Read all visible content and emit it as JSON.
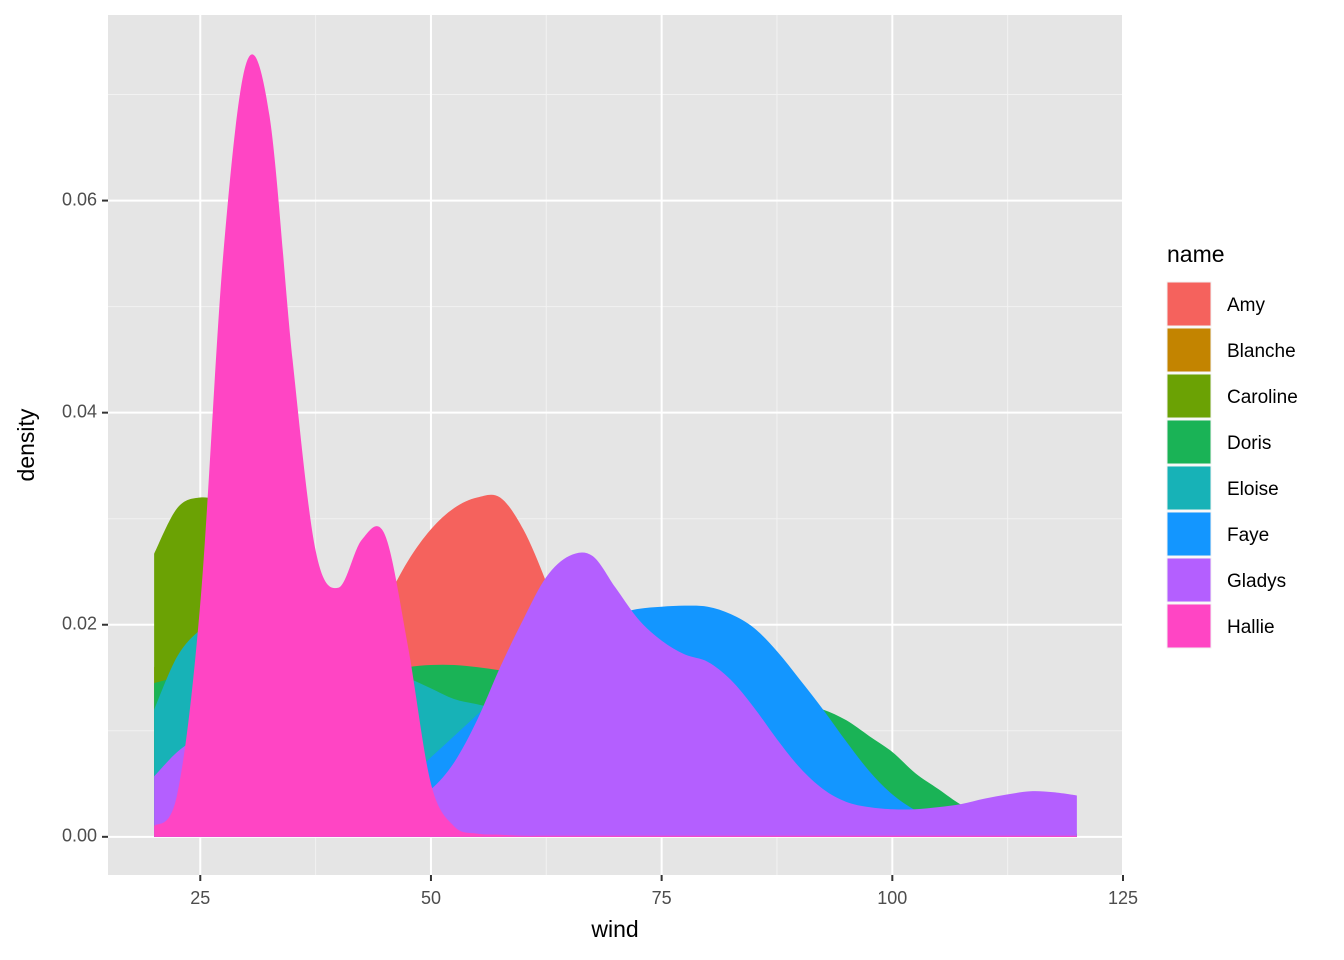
{
  "chart_data": {
    "type": "density",
    "x_label": "wind",
    "y_label": "density",
    "legend_title": "name",
    "xlim": [
      15,
      125
    ],
    "xticks": [
      25,
      50,
      75,
      100,
      125
    ],
    "ylim": [
      -0.0036,
      0.0775
    ],
    "yticks": [
      {
        "value": 0,
        "label": "0.00"
      },
      {
        "value": 0.02,
        "label": "0.02"
      },
      {
        "value": 0.04,
        "label": "0.04"
      },
      {
        "value": 0.06,
        "label": "0.06"
      }
    ],
    "grid": true,
    "legend": "right",
    "x": [
      20,
      22.5,
      25,
      27.5,
      30,
      32.5,
      35,
      37.5,
      40,
      42.5,
      45,
      47.5,
      50,
      52.5,
      55,
      57.5,
      60,
      62.5,
      65,
      67.5,
      70,
      72.5,
      75,
      77.5,
      80,
      82.5,
      85,
      87.5,
      90,
      92.5,
      95,
      97.5,
      100,
      102.5,
      105,
      107.5,
      110,
      112.5,
      115,
      117.5,
      120
    ],
    "series": [
      {
        "name": "Amy",
        "color": "#F5625D",
        "values": [
          0.009,
          0.009,
          0.008,
          0.008,
          0.008,
          0.009,
          0.01,
          0.012,
          0.014,
          0.018,
          0.022,
          0.026,
          0.029,
          0.031,
          0.032,
          0.032,
          0.029,
          0.024,
          0.018,
          0.012,
          0.008,
          0.005,
          0.003,
          0.002,
          0.001,
          0.0005,
          0,
          0,
          0,
          0,
          0,
          0,
          0,
          0,
          0,
          0,
          0,
          0,
          0,
          0,
          0
        ]
      },
      {
        "name": "Blanche",
        "color": "#C38400",
        "values": [
          0.016,
          0.018,
          0.019,
          0.02,
          0.02,
          0.019,
          0.017,
          0.014,
          0.011,
          0.008,
          0.006,
          0.004,
          0.003,
          0.002,
          0.001,
          0.0005,
          0,
          0,
          0,
          0,
          0,
          0,
          0,
          0,
          0,
          0,
          0,
          0,
          0,
          0,
          0,
          0,
          0,
          0,
          0,
          0,
          0,
          0,
          0,
          0,
          0
        ]
      },
      {
        "name": "Caroline",
        "color": "#6BA204",
        "values": [
          0.0267,
          0.031,
          0.032,
          0.0315,
          0.03,
          0.027,
          0.024,
          0.02,
          0.016,
          0.012,
          0.009,
          0.006,
          0.004,
          0.003,
          0.002,
          0.0015,
          0.001,
          0.0005,
          0,
          0,
          0,
          0,
          0,
          0,
          0,
          0,
          0,
          0,
          0,
          0,
          0,
          0,
          0,
          0,
          0,
          0,
          0,
          0,
          0,
          0,
          0
        ]
      },
      {
        "name": "Doris",
        "color": "#1AB356",
        "values": [
          0.0145,
          0.015,
          0.015,
          0.015,
          0.0145,
          0.014,
          0.014,
          0.014,
          0.0145,
          0.015,
          0.0155,
          0.016,
          0.0162,
          0.0162,
          0.016,
          0.0157,
          0.0153,
          0.015,
          0.0147,
          0.0145,
          0.0143,
          0.014,
          0.0138,
          0.0135,
          0.0133,
          0.0132,
          0.013,
          0.0128,
          0.0125,
          0.012,
          0.011,
          0.0095,
          0.008,
          0.006,
          0.0045,
          0.003,
          0.002,
          0.0013,
          0.0008,
          0.0005,
          0.0003
        ]
      },
      {
        "name": "Eloise",
        "color": "#17B2B7",
        "values": [
          0.012,
          0.017,
          0.0195,
          0.0205,
          0.021,
          0.0205,
          0.02,
          0.019,
          0.018,
          0.017,
          0.016,
          0.015,
          0.014,
          0.013,
          0.0125,
          0.012,
          0.0115,
          0.0105,
          0.009,
          0.0075,
          0.006,
          0.005,
          0.004,
          0.003,
          0.002,
          0.0015,
          0.001,
          0.0005,
          0,
          0,
          0,
          0,
          0,
          0,
          0,
          0,
          0,
          0,
          0,
          0,
          0
        ]
      },
      {
        "name": "Faye",
        "color": "#1396FF",
        "values": [
          0.001,
          0.001,
          0.0012,
          0.0013,
          0.0015,
          0.0017,
          0.0018,
          0.002,
          0.0025,
          0.003,
          0.004,
          0.0055,
          0.0075,
          0.0095,
          0.0115,
          0.0135,
          0.016,
          0.018,
          0.0195,
          0.0205,
          0.021,
          0.0215,
          0.0217,
          0.0218,
          0.0217,
          0.021,
          0.0197,
          0.0175,
          0.0148,
          0.012,
          0.009,
          0.0062,
          0.004,
          0.0025,
          0.0015,
          0.001,
          0.0006,
          0.0003,
          0.0002,
          0.0001,
          0.0001
        ]
      },
      {
        "name": "Gladys",
        "color": "#B45FFF",
        "values": [
          0.0057,
          0.008,
          0.0095,
          0.0105,
          0.011,
          0.0105,
          0.009,
          0.0075,
          0.006,
          0.0045,
          0.0035,
          0.0035,
          0.0045,
          0.007,
          0.011,
          0.016,
          0.0205,
          0.0245,
          0.0265,
          0.0265,
          0.0235,
          0.0205,
          0.0185,
          0.0172,
          0.0165,
          0.0148,
          0.0122,
          0.0092,
          0.0065,
          0.0045,
          0.0033,
          0.0028,
          0.0026,
          0.0026,
          0.0028,
          0.0031,
          0.0036,
          0.004,
          0.0043,
          0.0042,
          0.0039
        ]
      },
      {
        "name": "Hallie",
        "color": "#FF45C4",
        "values": [
          0.001,
          0.004,
          0.022,
          0.055,
          0.073,
          0.068,
          0.045,
          0.027,
          0.0235,
          0.028,
          0.0285,
          0.018,
          0.005,
          0.001,
          0.0003,
          0.0002,
          0.0001,
          0.0001,
          0.0001,
          0.0001,
          0.0001,
          0.0001,
          0.0001,
          0.0001,
          0.0001,
          0.0001,
          0.0001,
          0.0001,
          0.0001,
          0.0001,
          0.0001,
          0.0001,
          0.0001,
          0.0001,
          0.0001,
          0.0001,
          0.0001,
          0.0001,
          0.0001,
          0.0001,
          0.0001
        ]
      }
    ]
  }
}
